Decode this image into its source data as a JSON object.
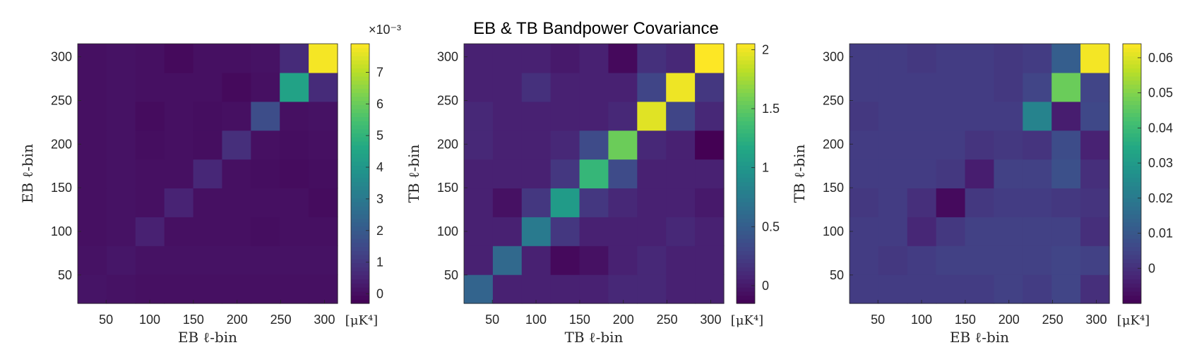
{
  "figure": {
    "title": "EB & TB Bandpower Covariance"
  },
  "colormap": [
    "#440154",
    "#482475",
    "#414487",
    "#355f8d",
    "#2a788e",
    "#21918c",
    "#22a884",
    "#44bf70",
    "#7ad151",
    "#bddf26",
    "#fde725"
  ],
  "chart_data": [
    {
      "type": "heatmap",
      "xlabel": "EB ℓ-bin",
      "ylabel": "EB ℓ-bin",
      "x_ticks": [
        "50",
        "100",
        "150",
        "200",
        "250",
        "300"
      ],
      "y_ticks": [
        "50",
        "100",
        "150",
        "200",
        "250",
        "300"
      ],
      "bin_centers": [
        35,
        70,
        105,
        140,
        175,
        210,
        245,
        280,
        315
      ],
      "colorbar": {
        "unit": "[μK⁴]",
        "multiplier": "×10⁻³",
        "ticks": [
          "0",
          "1",
          "2",
          "3",
          "4",
          "5",
          "6",
          "7"
        ],
        "tick_values": [
          0,
          1,
          2,
          3,
          4,
          5,
          6,
          7
        ],
        "range": [
          -0.3,
          7.9
        ]
      },
      "values": [
        [
          0.15,
          0.1,
          0.05,
          0.05,
          0.05,
          0.05,
          0.05,
          0.05,
          0.05
        ],
        [
          0.1,
          0.2,
          0.1,
          0.1,
          0.1,
          0.1,
          0.1,
          0.1,
          0.1
        ],
        [
          0.05,
          0.1,
          0.45,
          0.05,
          0.05,
          0.05,
          0.0,
          0.05,
          0.05
        ],
        [
          0.05,
          0.1,
          0.05,
          0.5,
          0.05,
          0.05,
          0.05,
          0.05,
          -0.05
        ],
        [
          0.05,
          0.1,
          0.05,
          0.05,
          0.6,
          0.05,
          0.0,
          -0.05,
          0.0
        ],
        [
          0.05,
          0.1,
          0.0,
          0.05,
          0.0,
          0.8,
          0.05,
          0.0,
          0.05
        ],
        [
          0.05,
          0.1,
          -0.05,
          0.05,
          0.0,
          0.05,
          1.6,
          0.05,
          0.1
        ],
        [
          0.05,
          0.1,
          0.05,
          0.05,
          0.05,
          -0.1,
          0.05,
          4.4,
          0.7
        ],
        [
          0.05,
          0.1,
          0.05,
          -0.1,
          0.05,
          0.05,
          0.1,
          0.7,
          7.8
        ]
      ]
    },
    {
      "type": "heatmap",
      "xlabel": "TB ℓ-bin",
      "ylabel": "TB ℓ-bin",
      "x_ticks": [
        "50",
        "100",
        "150",
        "200",
        "250",
        "300"
      ],
      "y_ticks": [
        "50",
        "100",
        "150",
        "200",
        "250",
        "300"
      ],
      "bin_centers": [
        35,
        70,
        105,
        140,
        175,
        210,
        245,
        280,
        315
      ],
      "colorbar": {
        "unit": "[μK⁴]",
        "multiplier": "",
        "ticks": [
          "0",
          "0.5",
          "1",
          "1.5",
          "2"
        ],
        "tick_values": [
          0,
          0.5,
          1,
          1.5,
          2
        ],
        "range": [
          -0.15,
          2.05
        ]
      },
      "values": [
        [
          0.55,
          0.05,
          0.05,
          0.05,
          0.05,
          0.1,
          0.1,
          0.05,
          0.05
        ],
        [
          0.05,
          0.6,
          0.05,
          -0.1,
          -0.05,
          0.05,
          0.1,
          0.05,
          0.05
        ],
        [
          0.05,
          0.05,
          0.75,
          0.2,
          0.05,
          0.05,
          0.05,
          0.1,
          0.05
        ],
        [
          0.05,
          -0.05,
          0.2,
          1.05,
          0.2,
          0.1,
          0.05,
          0.05,
          0.0
        ],
        [
          0.05,
          0.05,
          0.05,
          0.2,
          1.3,
          0.35,
          0.05,
          0.05,
          0.05
        ],
        [
          0.1,
          0.05,
          0.05,
          0.1,
          0.35,
          1.55,
          0.1,
          0.05,
          -0.15
        ],
        [
          0.1,
          0.05,
          0.05,
          0.05,
          0.05,
          0.1,
          1.95,
          0.3,
          0.1
        ],
        [
          0.05,
          0.05,
          0.15,
          0.05,
          0.05,
          0.05,
          0.3,
          2.0,
          0.2
        ],
        [
          0.05,
          0.05,
          0.05,
          0.0,
          0.05,
          -0.1,
          0.15,
          0.1,
          2.05
        ]
      ]
    },
    {
      "type": "heatmap",
      "xlabel": "EB ℓ-bin",
      "ylabel": "TB ℓ-bin",
      "x_ticks": [
        "50",
        "100",
        "150",
        "200",
        "250",
        "300"
      ],
      "y_ticks": [
        "50",
        "100",
        "150",
        "200",
        "250",
        "300"
      ],
      "bin_centers": [
        35,
        70,
        105,
        140,
        175,
        210,
        245,
        280,
        315
      ],
      "colorbar": {
        "unit": "[μK⁴]",
        "multiplier": "",
        "ticks": [
          "0",
          "0.01",
          "0.02",
          "0.03",
          "0.04",
          "0.05",
          "0.06"
        ],
        "tick_values": [
          0,
          0.01,
          0.02,
          0.03,
          0.04,
          0.05,
          0.06
        ],
        "range": [
          -0.01,
          0.064
        ]
      },
      "values": [
        [
          0.003,
          0.003,
          0.003,
          0.003,
          0.003,
          0.004,
          0.003,
          0.005,
          0.0
        ],
        [
          0.003,
          0.002,
          0.003,
          0.004,
          0.004,
          0.004,
          0.004,
          0.005,
          0.004
        ],
        [
          0.003,
          0.003,
          -0.002,
          0.002,
          0.004,
          0.004,
          0.004,
          0.004,
          0.0
        ],
        [
          0.002,
          0.003,
          0.0,
          -0.008,
          0.002,
          0.003,
          0.003,
          0.002,
          0.001
        ],
        [
          0.003,
          0.003,
          0.003,
          0.002,
          -0.004,
          0.004,
          0.004,
          0.008,
          0.0
        ],
        [
          0.003,
          0.003,
          0.003,
          0.003,
          0.001,
          0.002,
          0.001,
          0.007,
          -0.003
        ],
        [
          0.002,
          0.003,
          0.003,
          0.003,
          0.003,
          0.003,
          0.023,
          -0.004,
          0.006
        ],
        [
          0.003,
          0.003,
          0.003,
          0.003,
          0.003,
          0.002,
          0.005,
          0.047,
          0.005
        ],
        [
          0.003,
          0.003,
          0.002,
          0.003,
          0.003,
          0.002,
          0.003,
          0.012,
          0.063
        ]
      ]
    }
  ]
}
